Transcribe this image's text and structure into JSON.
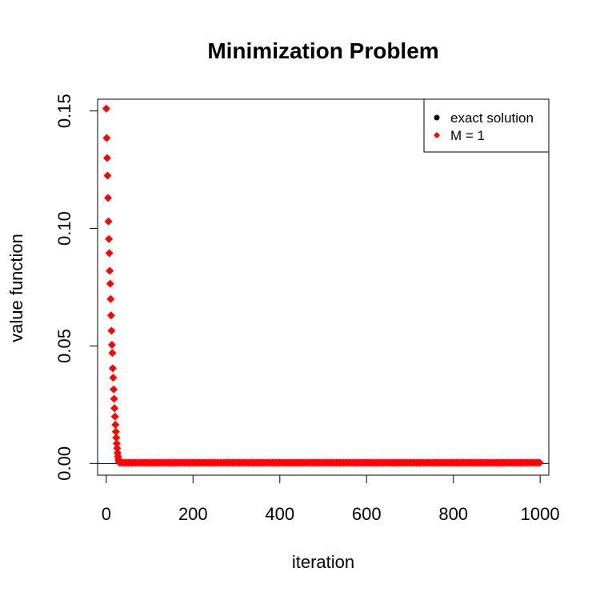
{
  "chart_data": {
    "type": "scatter",
    "title": "Minimization Problem",
    "xlabel": "iteration",
    "ylabel": "value function",
    "xlim": [
      -20,
      1020
    ],
    "ylim": [
      -0.005,
      0.155
    ],
    "x_ticks": [
      0,
      200,
      400,
      600,
      800,
      1000
    ],
    "y_ticks": [
      0.0,
      0.05,
      0.1,
      0.15
    ],
    "x_tick_labels": [
      "0",
      "200",
      "400",
      "600",
      "800",
      "1000"
    ],
    "y_tick_labels": [
      "0.00",
      "0.05",
      "0.10",
      "0.15"
    ],
    "grid": false,
    "legend_position": "top-right",
    "reference_line": {
      "y": 0
    },
    "series": [
      {
        "name": "exact solution",
        "color": "#000000",
        "marker": "circle",
        "x": [],
        "y": []
      },
      {
        "name": "M = 1",
        "color": "#ff0000",
        "marker": "diamond",
        "x": [
          0,
          1,
          2,
          3,
          4,
          5,
          6,
          7,
          8,
          9,
          10,
          11,
          12,
          13,
          14,
          15,
          16,
          17,
          18,
          19,
          20,
          21,
          22,
          23,
          24,
          25,
          26,
          27,
          28,
          29,
          30
        ],
        "y": [
          0.151,
          0.1385,
          0.13,
          0.1225,
          0.113,
          0.103,
          0.0955,
          0.0895,
          0.082,
          0.0765,
          0.07,
          0.063,
          0.0565,
          0.0505,
          0.047,
          0.0405,
          0.0365,
          0.0315,
          0.0275,
          0.0235,
          0.02,
          0.0165,
          0.0135,
          0.011,
          0.0085,
          0.0065,
          0.0045,
          0.003,
          0.0018,
          0.001,
          0.0005
        ],
        "tail": {
          "from": 31,
          "to": 1000,
          "step": 4,
          "value": 0.0003
        }
      }
    ]
  }
}
